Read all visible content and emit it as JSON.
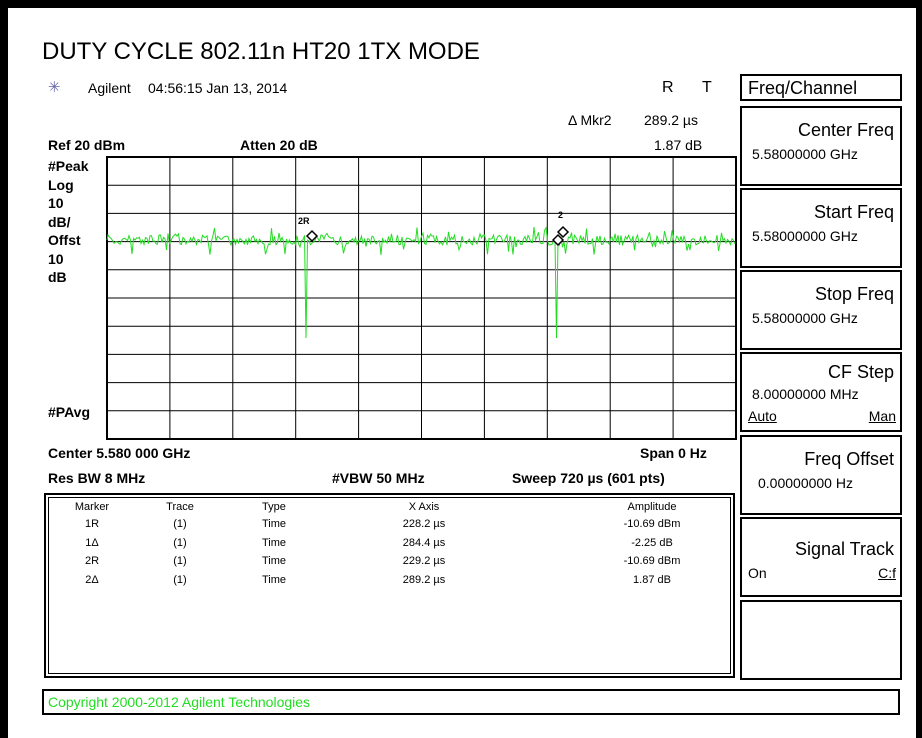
{
  "title": "DUTY CYCLE 802.11n HT20 1TX MODE",
  "header": {
    "brand": "Agilent",
    "datetime": "04:56:15 Jan 13, 2014",
    "r": "R",
    "t": "T"
  },
  "marker_readout": {
    "label": "Δ Mkr2",
    "x": "289.2 µs",
    "amplitude": "1.87 dB"
  },
  "ref": "Ref 20 dBm",
  "atten": "Atten 20 dB",
  "left_labels": [
    "#Peak",
    "Log",
    "10",
    "dB/",
    "Offst",
    "10",
    "dB"
  ],
  "avg": "#PAvg",
  "graph_markers": [
    "2R",
    "2"
  ],
  "footer": {
    "center": "Center 5.580 000 GHz",
    "span": "Span 0 Hz",
    "rbw": "Res BW 8 MHz",
    "vbw": "#VBW 50 MHz",
    "sweep": "Sweep 720 µs (601 pts)"
  },
  "table": {
    "columns": [
      "Marker",
      "Trace",
      "Type",
      "X Axis",
      "Amplitude"
    ],
    "rows": [
      [
        "1R",
        "(1)",
        "Time",
        "228.2 µs",
        "-10.69 dBm"
      ],
      [
        "1Δ",
        "(1)",
        "Time",
        "284.4 µs",
        "-2.25 dB"
      ],
      [
        "2R",
        "(1)",
        "Time",
        "229.2 µs",
        "-10.69 dBm"
      ],
      [
        "2Δ",
        "(1)",
        "Time",
        "289.2 µs",
        "1.87 dB"
      ]
    ]
  },
  "copyright": "Copyright 2000-2012 Agilent Technologies",
  "menu": {
    "title": "Freq/Channel",
    "keys": [
      {
        "label": "Center Freq",
        "value": "5.58000000 GHz"
      },
      {
        "label": "Start Freq",
        "value": "5.58000000 GHz"
      },
      {
        "label": "Stop Freq",
        "value": "5.58000000 GHz"
      },
      {
        "label": "CF Step",
        "value": "8.00000000 MHz",
        "left": "Auto",
        "right": "Man"
      },
      {
        "label": "Freq Offset",
        "value": "0.00000000  Hz"
      },
      {
        "label": "Signal Track",
        "left": "On",
        "right": "C:f"
      }
    ]
  }
}
